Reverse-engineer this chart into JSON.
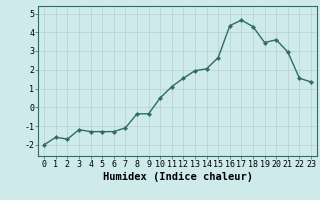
{
  "x": [
    0,
    1,
    2,
    3,
    4,
    5,
    6,
    7,
    8,
    9,
    10,
    11,
    12,
    13,
    14,
    15,
    16,
    17,
    18,
    19,
    20,
    21,
    22,
    23
  ],
  "y": [
    -2.0,
    -1.6,
    -1.7,
    -1.2,
    -1.3,
    -1.3,
    -1.3,
    -1.1,
    -0.35,
    -0.35,
    0.5,
    1.1,
    1.55,
    1.95,
    2.05,
    2.65,
    4.35,
    4.65,
    4.3,
    3.45,
    3.6,
    2.95,
    1.55,
    1.35
  ],
  "line_color": "#2e6e62",
  "marker": "D",
  "markersize": 2.2,
  "linewidth": 1.0,
  "background_color": "#ceeaea",
  "grid_color": "#b8d4d4",
  "xlabel": "Humidex (Indice chaleur)",
  "xlabel_fontsize": 7.5,
  "xlim": [
    -0.5,
    23.5
  ],
  "ylim": [
    -2.6,
    5.4
  ],
  "yticks": [
    -2,
    -1,
    0,
    1,
    2,
    3,
    4,
    5
  ],
  "xticks": [
    0,
    1,
    2,
    3,
    4,
    5,
    6,
    7,
    8,
    9,
    10,
    11,
    12,
    13,
    14,
    15,
    16,
    17,
    18,
    19,
    20,
    21,
    22,
    23
  ],
  "tick_fontsize": 6.0,
  "spine_color": "#2e6e62"
}
